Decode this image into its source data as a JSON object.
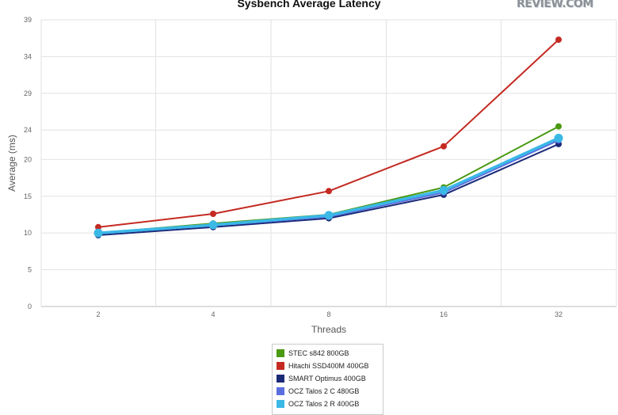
{
  "logo_text": "REVIEW.COM",
  "chart_data": {
    "type": "line",
    "title": "Sysbench Average Latency",
    "xlabel": "Threads",
    "ylabel": "Average (ms)",
    "categories": [
      "2",
      "4",
      "8",
      "16",
      "32"
    ],
    "yticks": [
      0,
      5,
      10,
      15,
      20,
      24,
      29,
      34,
      39
    ],
    "ylim": [
      0,
      39
    ],
    "grid": true,
    "legend_position": "bottom",
    "series": [
      {
        "name": "STEC s842 800GB",
        "color": "#4a9a12",
        "values": [
          10.0,
          11.3,
          12.5,
          16.2,
          24.5
        ]
      },
      {
        "name": "Hitachi SSD400M 400GB",
        "color": "#c42a22",
        "values": [
          10.8,
          12.6,
          15.7,
          21.8,
          36.3
        ]
      },
      {
        "name": "SMART Optimus 400GB",
        "color": "#1a2a78",
        "values": [
          9.7,
          10.8,
          12.0,
          15.2,
          22.1
        ]
      },
      {
        "name": "OCZ Talos 2 C 480GB",
        "color": "#5a6ee0",
        "values": [
          9.9,
          11.0,
          12.2,
          15.5,
          22.6
        ]
      },
      {
        "name": "OCZ Talos 2 R 400GB",
        "color": "#3ab8e6",
        "values": [
          10.0,
          11.1,
          12.4,
          15.8,
          22.9
        ]
      }
    ]
  }
}
